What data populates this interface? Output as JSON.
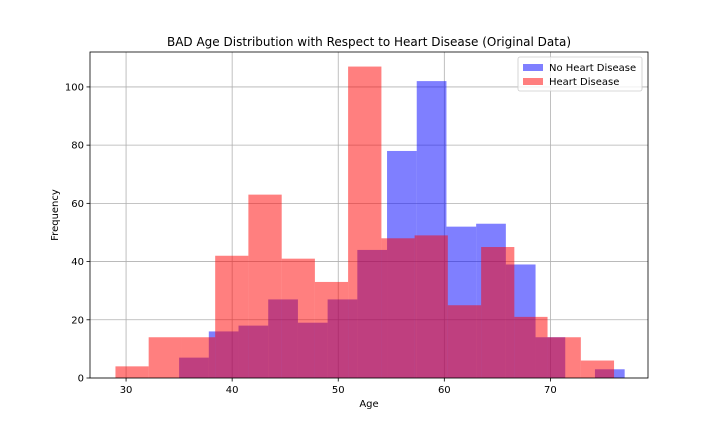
{
  "chart_data": {
    "type": "histogram",
    "title": "BAD Age Distribution with Respect to Heart Disease (Original Data)",
    "xlabel": "Age",
    "ylabel": "Frequency",
    "xlim": [
      26.6,
      79.2
    ],
    "ylim": [
      0,
      112
    ],
    "xticks": [
      30,
      40,
      50,
      60,
      70
    ],
    "yticks": [
      0,
      20,
      40,
      60,
      80,
      100
    ],
    "grid": true,
    "legend_position": "upper right",
    "series": [
      {
        "name": "No Heart Disease",
        "color": "#0000ff",
        "opacity": 0.5,
        "bins": [
          {
            "x0": 35,
            "x1": 37.8,
            "count": 7
          },
          {
            "x0": 37.8,
            "x1": 40.6,
            "count": 16
          },
          {
            "x0": 40.6,
            "x1": 43.4,
            "count": 18
          },
          {
            "x0": 43.4,
            "x1": 46.2,
            "count": 27
          },
          {
            "x0": 46.2,
            "x1": 49.0,
            "count": 19
          },
          {
            "x0": 49.0,
            "x1": 51.8,
            "count": 27
          },
          {
            "x0": 51.8,
            "x1": 54.6,
            "count": 44
          },
          {
            "x0": 54.6,
            "x1": 57.4,
            "count": 78
          },
          {
            "x0": 57.4,
            "x1": 60.2,
            "count": 102
          },
          {
            "x0": 60.2,
            "x1": 63.0,
            "count": 52
          },
          {
            "x0": 63.0,
            "x1": 65.8,
            "count": 53
          },
          {
            "x0": 65.8,
            "x1": 68.6,
            "count": 39
          },
          {
            "x0": 68.6,
            "x1": 71.4,
            "count": 14
          },
          {
            "x0": 71.4,
            "x1": 74.2,
            "count": 0
          },
          {
            "x0": 74.2,
            "x1": 77.0,
            "count": 3
          }
        ]
      },
      {
        "name": "Heart Disease",
        "color": "#ff0000",
        "opacity": 0.5,
        "bins": [
          {
            "x0": 29.0,
            "x1": 32.13,
            "count": 4
          },
          {
            "x0": 32.13,
            "x1": 35.27,
            "count": 14
          },
          {
            "x0": 35.27,
            "x1": 38.4,
            "count": 14
          },
          {
            "x0": 38.4,
            "x1": 41.53,
            "count": 42
          },
          {
            "x0": 41.53,
            "x1": 44.67,
            "count": 63
          },
          {
            "x0": 44.67,
            "x1": 47.8,
            "count": 41
          },
          {
            "x0": 47.8,
            "x1": 50.93,
            "count": 33
          },
          {
            "x0": 50.93,
            "x1": 54.07,
            "count": 107
          },
          {
            "x0": 54.07,
            "x1": 57.2,
            "count": 48
          },
          {
            "x0": 57.2,
            "x1": 60.33,
            "count": 49
          },
          {
            "x0": 60.33,
            "x1": 63.47,
            "count": 25
          },
          {
            "x0": 63.47,
            "x1": 66.6,
            "count": 45
          },
          {
            "x0": 66.6,
            "x1": 69.73,
            "count": 21
          },
          {
            "x0": 69.73,
            "x1": 72.87,
            "count": 14
          },
          {
            "x0": 72.87,
            "x1": 76.0,
            "count": 6
          }
        ]
      }
    ]
  }
}
